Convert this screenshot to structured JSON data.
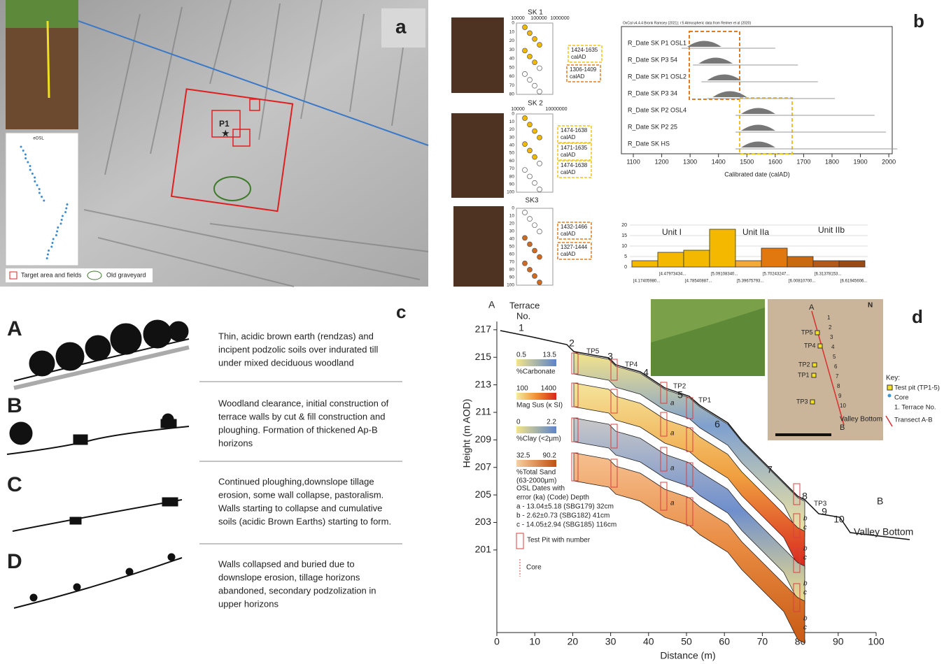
{
  "panel_a": {
    "label": "a",
    "marker": "P1",
    "inset_title": "eOSL",
    "legend": [
      "Target area and fields",
      "Old graveyard"
    ]
  },
  "panel_sk": {
    "profiles": [
      {
        "title": "SK 1",
        "x_ticks": [
          "10000",
          "100000",
          "1000000"
        ],
        "depth_ticks": [
          0,
          10,
          20,
          30,
          40,
          50,
          60,
          70,
          80
        ],
        "dates": [
          [
            "1424-1635",
            "calAD"
          ],
          [
            "1306-1409",
            "calAD"
          ]
        ]
      },
      {
        "title": "SK 2",
        "x_ticks": [
          "10000",
          "10000000"
        ],
        "depth_ticks": [
          0,
          10,
          20,
          30,
          40,
          50,
          60,
          70,
          80,
          90,
          100
        ],
        "dates": [
          [
            "1474-1638",
            "calAD"
          ],
          [
            "1471-1635",
            "calAD"
          ],
          [
            "1474-1638",
            "calAD"
          ]
        ]
      },
      {
        "title": "SK3",
        "x_ticks": [],
        "depth_ticks": [
          0,
          10,
          20,
          30,
          40,
          50,
          60,
          70,
          80,
          90,
          100
        ],
        "dates": [
          [
            "1432-1466",
            "calAD"
          ],
          [
            "1327-1444",
            "calAD"
          ]
        ]
      }
    ]
  },
  "panel_b": {
    "label": "b",
    "oxcal": {
      "header": "OxCal v4.4.4 Bronk Ramsey (2021); r:5 Atmospheric data from Reimer et al (2020)",
      "rows": [
        "R_Date SK P1 OSL1",
        "R_Date SK P3 54",
        "R_Date SK P1 OSL2",
        "R_Date SK P3 34",
        "R_Date SK P2 OSL4",
        "R_Date SK P2 25",
        "R_Date SK HS"
      ],
      "xlim": [
        1058,
        2012
      ],
      "xticks": [
        1100,
        1200,
        1300,
        1400,
        1500,
        1600,
        1700,
        1800,
        1900,
        2000
      ],
      "x_label": "Calibrated date (calAD)"
    },
    "histogram": {
      "units": [
        "Unit I",
        "Unit IIa",
        "Unit IIb"
      ],
      "categories": [
        "[4.17405980...",
        "[4.47973434...",
        "[4.78540887...",
        "[5.09108340...",
        "[5.39675793...",
        "[5.70243247...",
        "[6.00810700...",
        "[6.31378153...",
        "[6.61945606..."
      ],
      "values": [
        3,
        7,
        8,
        18,
        3,
        9,
        5,
        3,
        3
      ],
      "colors": [
        "#f5b800",
        "#f5b800",
        "#f5b800",
        "#f5b800",
        "#f3a93a",
        "#e0780f",
        "#c96a12",
        "#b35a1a",
        "#9a4a14"
      ],
      "ylim": [
        0,
        20
      ],
      "yticks": [
        0,
        5,
        10,
        15,
        20
      ]
    }
  },
  "panel_c": {
    "label": "c",
    "stages": [
      {
        "letter": "A",
        "lines": [
          "Thin, acidic brown earth (rendzas) and",
          "incipent podzolic soils over indurated till",
          "under mixed deciduous woodland"
        ]
      },
      {
        "letter": "B",
        "lines": [
          "Woodland clearance, initial construction of",
          "terrace walls by cut & fill construction and",
          "ploughing. Formation of thickened Ap-B",
          "horizons"
        ]
      },
      {
        "letter": "C",
        "lines": [
          "Continued ploughing,downslope tillage",
          "erosion, some wall collapse, pastoralism.",
          "Walls starting to collapse and cumulative",
          "soils (acidic Brown Earths) starting to form."
        ]
      },
      {
        "letter": "D",
        "lines": [
          "Walls collapsed and buried due to",
          "downslope erosion, tillage horizons",
          "abandoned, secondary podzolization in",
          "upper horizons"
        ]
      }
    ]
  },
  "panel_d": {
    "label": "d",
    "start": "A",
    "end": "B",
    "terrace_title": [
      "Terrace",
      "No."
    ],
    "terraces": [
      "1",
      "2",
      "3",
      "4",
      "5",
      "6",
      "7",
      "8",
      "9",
      "10"
    ],
    "test_pits": [
      "TP5",
      "TP4",
      "TP2",
      "TP1",
      "TP3"
    ],
    "valley": "Valley Bottom",
    "y_label": "Height (m AOD)",
    "x_label": "Distance (m)",
    "xlim": [
      0,
      100
    ],
    "xticks": [
      0,
      10,
      20,
      30,
      40,
      50,
      60,
      70,
      80,
      90,
      100
    ],
    "ylim": [
      195,
      217.6
    ],
    "yticks": [
      201,
      203,
      205,
      207,
      209,
      211,
      213,
      215,
      217
    ],
    "scales": [
      {
        "min": "0.5",
        "max": "13.5",
        "name": "%Carbonate"
      },
      {
        "min": "100",
        "max": "1400",
        "name": "Mag Sus (κ SI)"
      },
      {
        "min": "0",
        "max": "2.2",
        "name": "%Clay (<2μm)"
      },
      {
        "min": "32.5",
        "max": "90.2",
        "name": "%Total Sand",
        "sub": "(63-2000μm)"
      }
    ],
    "osl_title": [
      "OSL Dates with",
      "error (ka) (Code) Depth"
    ],
    "osl": [
      "a - 13.04±5.18 (SBG179) 32cm",
      "b - 2.62±0.73 (SBG182) 41cm",
      "c - 14.05±2.94 (SBG185) 116cm"
    ],
    "core_letters": [
      "a",
      "b",
      "c"
    ],
    "legend_pit": "Test Pit with number",
    "legend_core": "Core",
    "map": {
      "north": "N",
      "key": "Key:",
      "items": [
        "Test pit (TP1-5)",
        "Core",
        "1. Terrace No.",
        "Transect A-B"
      ]
    }
  }
}
